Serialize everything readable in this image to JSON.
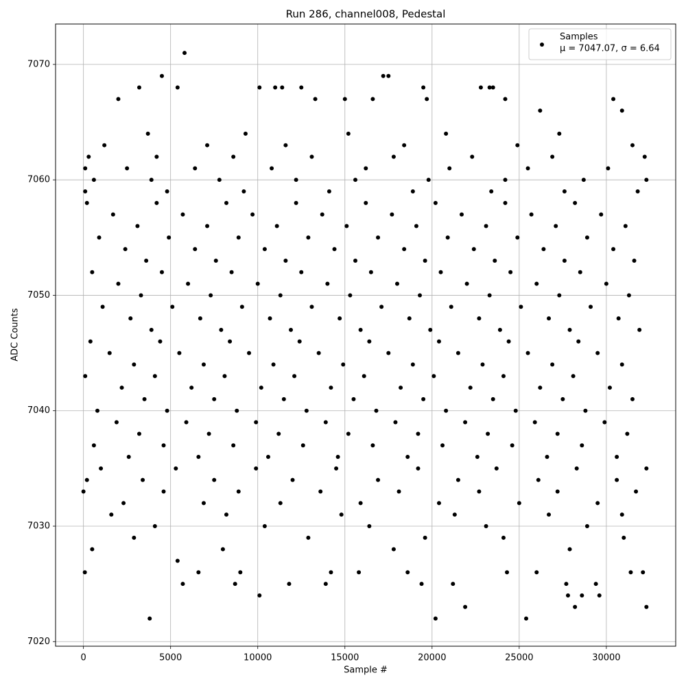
{
  "chart_data": {
    "type": "scatter",
    "title": "Run 286, channel008, Pedestal",
    "x_label": "Sample #",
    "y_label": "ADC Counts",
    "xlim": [
      -1600,
      33980
    ],
    "ylim": [
      7019.6,
      7073.5
    ],
    "xticks": [
      0,
      5000,
      10000,
      15000,
      20000,
      25000,
      30000
    ],
    "yticks": [
      7020,
      7030,
      7040,
      7050,
      7060,
      7070
    ],
    "grid": true,
    "legend": "upper right",
    "legend_note": "μ = 7047.07, σ = 6.64",
    "series": [
      {
        "name": "Samples",
        "color": "#000000",
        "x": [
          80,
          3800,
          5800,
          4500,
          20200,
          25400,
          32300,
          21900,
          28200,
          10100,
          17200,
          17500,
          3200,
          5400,
          10100,
          2000,
          13300,
          15000,
          16600,
          22800,
          23300,
          30400,
          19500,
          5700,
          8700,
          11800,
          13900,
          19400,
          21200,
          27700,
          29400,
          29600,
          27800,
          28600,
          12500,
          11000,
          11400,
          19700,
          23500,
          24200,
          26200,
          30900,
          5400,
          26000,
          6600,
          9000,
          14200,
          15800,
          18600,
          24300,
          31400,
          32100,
          3700,
          9300,
          15200,
          20800,
          27300,
          1200,
          7100,
          11600,
          18400,
          24900,
          31500,
          300,
          4200,
          8600,
          13100,
          17800,
          22300,
          26900,
          32200,
          100,
          2500,
          6400,
          10800,
          16200,
          21000,
          25500,
          30100,
          600,
          3900,
          7800,
          12200,
          15600,
          19800,
          24200,
          28700,
          32300,
          100,
          4800,
          9200,
          14100,
          18900,
          23400,
          27600,
          31800,
          200,
          4200,
          8200,
          12200,
          16200,
          20200,
          24200,
          28200,
          1700,
          5700,
          9700,
          13700,
          17700,
          21700,
          25700,
          29700,
          3100,
          7100,
          11100,
          15100,
          19100,
          23100,
          27100,
          31100,
          900,
          4900,
          8900,
          12900,
          16900,
          20900,
          24900,
          28900,
          2400,
          6400,
          10400,
          14400,
          18400,
          22400,
          26400,
          30400,
          3600,
          7600,
          11600,
          15600,
          19600,
          23600,
          27600,
          31600,
          500,
          4500,
          8500,
          12500,
          16500,
          20500,
          24500,
          28500,
          2000,
          6000,
          10000,
          14000,
          18000,
          22000,
          26000,
          30000,
          3300,
          7300,
          11300,
          15300,
          19300,
          23300,
          27300,
          31300,
          1100,
          5100,
          9100,
          13100,
          17100,
          21100,
          25100,
          29100,
          2700,
          6700,
          10700,
          14700,
          18700,
          22700,
          26700,
          30700,
          3900,
          7900,
          11900,
          15900,
          19900,
          23900,
          27900,
          31900,
          400,
          4400,
          8400,
          12400,
          16400,
          20400,
          24400,
          28400,
          1500,
          5500,
          9500,
          13500,
          17500,
          21500,
          25500,
          29500,
          2900,
          6900,
          10900,
          14900,
          18900,
          22900,
          26900,
          30900,
          100,
          4100,
          8100,
          12100,
          16100,
          20100,
          24100,
          28100,
          2200,
          6200,
          10200,
          14200,
          18200,
          22200,
          26200,
          30200,
          3500,
          7500,
          11500,
          15500,
          19500,
          23500,
          27500,
          31500,
          800,
          4800,
          8800,
          12800,
          16800,
          20800,
          24800,
          28800,
          1900,
          5900,
          9900,
          13900,
          17900,
          21900,
          25900,
          29900,
          3200,
          7200,
          11200,
          15200,
          19200,
          23200,
          27200,
          31200,
          600,
          4600,
          8600,
          12600,
          16600,
          20600,
          24600,
          28600,
          2600,
          6600,
          10600,
          14600,
          18600,
          22600,
          26600,
          30600,
          1000,
          5300,
          9900,
          14500,
          19200,
          23700,
          28300,
          32300,
          200,
          3400,
          7500,
          12000,
          16900,
          21500,
          26100,
          30600,
          0,
          4600,
          8900,
          13600,
          18100,
          22700,
          27200,
          31700,
          2300,
          6900,
          11300,
          15900,
          20400,
          25000,
          29500,
          1600,
          8200,
          14800,
          21300,
          26700,
          30900,
          4100,
          10400,
          16400,
          23100,
          28900,
          2900,
          12900,
          19600,
          24100,
          31000,
          500,
          8000,
          17800,
          27900
        ],
        "values": [
          7026,
          7022,
          7071,
          7069,
          7022,
          7022,
          7023,
          7023,
          7023,
          7024,
          7069,
          7069,
          7068,
          7068,
          7068,
          7067,
          7067,
          7067,
          7067,
          7068,
          7068,
          7067,
          7068,
          7025,
          7025,
          7025,
          7025,
          7025,
          7025,
          7025,
          7025,
          7024,
          7024,
          7024,
          7068,
          7068,
          7068,
          7067,
          7068,
          7067,
          7066,
          7066,
          7027,
          7026,
          7026,
          7026,
          7026,
          7026,
          7026,
          7026,
          7026,
          7026,
          7064,
          7064,
          7064,
          7064,
          7064,
          7063,
          7063,
          7063,
          7063,
          7063,
          7063,
          7062,
          7062,
          7062,
          7062,
          7062,
          7062,
          7062,
          7062,
          7061,
          7061,
          7061,
          7061,
          7061,
          7061,
          7061,
          7061,
          7060,
          7060,
          7060,
          7060,
          7060,
          7060,
          7060,
          7060,
          7060,
          7059,
          7059,
          7059,
          7059,
          7059,
          7059,
          7059,
          7059,
          7058,
          7058,
          7058,
          7058,
          7058,
          7058,
          7058,
          7058,
          7057,
          7057,
          7057,
          7057,
          7057,
          7057,
          7057,
          7057,
          7056,
          7056,
          7056,
          7056,
          7056,
          7056,
          7056,
          7056,
          7055,
          7055,
          7055,
          7055,
          7055,
          7055,
          7055,
          7055,
          7054,
          7054,
          7054,
          7054,
          7054,
          7054,
          7054,
          7054,
          7053,
          7053,
          7053,
          7053,
          7053,
          7053,
          7053,
          7053,
          7052,
          7052,
          7052,
          7052,
          7052,
          7052,
          7052,
          7052,
          7051,
          7051,
          7051,
          7051,
          7051,
          7051,
          7051,
          7051,
          7050,
          7050,
          7050,
          7050,
          7050,
          7050,
          7050,
          7050,
          7049,
          7049,
          7049,
          7049,
          7049,
          7049,
          7049,
          7049,
          7048,
          7048,
          7048,
          7048,
          7048,
          7048,
          7048,
          7048,
          7047,
          7047,
          7047,
          7047,
          7047,
          7047,
          7047,
          7047,
          7046,
          7046,
          7046,
          7046,
          7046,
          7046,
          7046,
          7046,
          7045,
          7045,
          7045,
          7045,
          7045,
          7045,
          7045,
          7045,
          7044,
          7044,
          7044,
          7044,
          7044,
          7044,
          7044,
          7044,
          7043,
          7043,
          7043,
          7043,
          7043,
          7043,
          7043,
          7043,
          7042,
          7042,
          7042,
          7042,
          7042,
          7042,
          7042,
          7042,
          7041,
          7041,
          7041,
          7041,
          7041,
          7041,
          7041,
          7041,
          7040,
          7040,
          7040,
          7040,
          7040,
          7040,
          7040,
          7040,
          7039,
          7039,
          7039,
          7039,
          7039,
          7039,
          7039,
          7039,
          7038,
          7038,
          7038,
          7038,
          7038,
          7038,
          7038,
          7038,
          7037,
          7037,
          7037,
          7037,
          7037,
          7037,
          7037,
          7037,
          7036,
          7036,
          7036,
          7036,
          7036,
          7036,
          7036,
          7036,
          7035,
          7035,
          7035,
          7035,
          7035,
          7035,
          7035,
          7035,
          7034,
          7034,
          7034,
          7034,
          7034,
          7034,
          7034,
          7034,
          7033,
          7033,
          7033,
          7033,
          7033,
          7033,
          7033,
          7033,
          7032,
          7032,
          7032,
          7032,
          7032,
          7032,
          7032,
          7031,
          7031,
          7031,
          7031,
          7031,
          7031,
          7030,
          7030,
          7030,
          7030,
          7030,
          7029,
          7029,
          7029,
          7029,
          7029,
          7028,
          7028,
          7028,
          7028
        ]
      }
    ]
  }
}
